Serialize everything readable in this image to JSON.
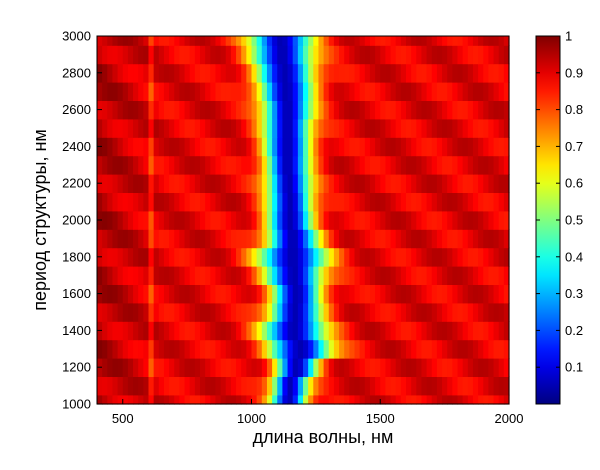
{
  "chart_data": {
    "type": "heatmap",
    "title": "",
    "xlabel": "длина волны, нм",
    "ylabel": "период структуры, нм",
    "xlim": [
      400,
      2000
    ],
    "ylim": [
      1000,
      3000
    ],
    "x_ticks": [
      "500",
      "1000",
      "1500",
      "2000"
    ],
    "y_ticks": [
      "1000",
      "1200",
      "1400",
      "1600",
      "1800",
      "2000",
      "2200",
      "2400",
      "2600",
      "2800",
      "3000"
    ],
    "colorbar": {
      "colormap": "jet",
      "min": 0,
      "max": 1,
      "ticks": [
        "0.1",
        "0.2",
        "0.3",
        "0.4",
        "0.5",
        "0.6",
        "0.7",
        "0.8",
        "0.9",
        "1"
      ]
    },
    "grid": false,
    "y_rows_periods_nm": [
      1000,
      1100,
      1200,
      1300,
      1400,
      1500,
      1600,
      1700,
      1800,
      1900,
      2000,
      2100,
      2200,
      2300,
      2400,
      2500,
      2600,
      2700,
      2800,
      2900,
      3000
    ],
    "dip_center_wavelength_nm": [
      1145,
      1150,
      1175,
      1190,
      1165,
      1170,
      1175,
      1165,
      1160,
      1160,
      1150,
      1150,
      1145,
      1140,
      1140,
      1140,
      1140,
      1135,
      1130,
      1120,
      1115
    ],
    "dip_width_nm": [
      70,
      70,
      80,
      120,
      120,
      100,
      95,
      110,
      130,
      100,
      90,
      85,
      85,
      85,
      90,
      90,
      95,
      105,
      110,
      115,
      120
    ],
    "min_value": 0.05,
    "background_value": 0.9,
    "column_feature": {
      "wavelength_nm": 610,
      "value": 0.83
    }
  }
}
